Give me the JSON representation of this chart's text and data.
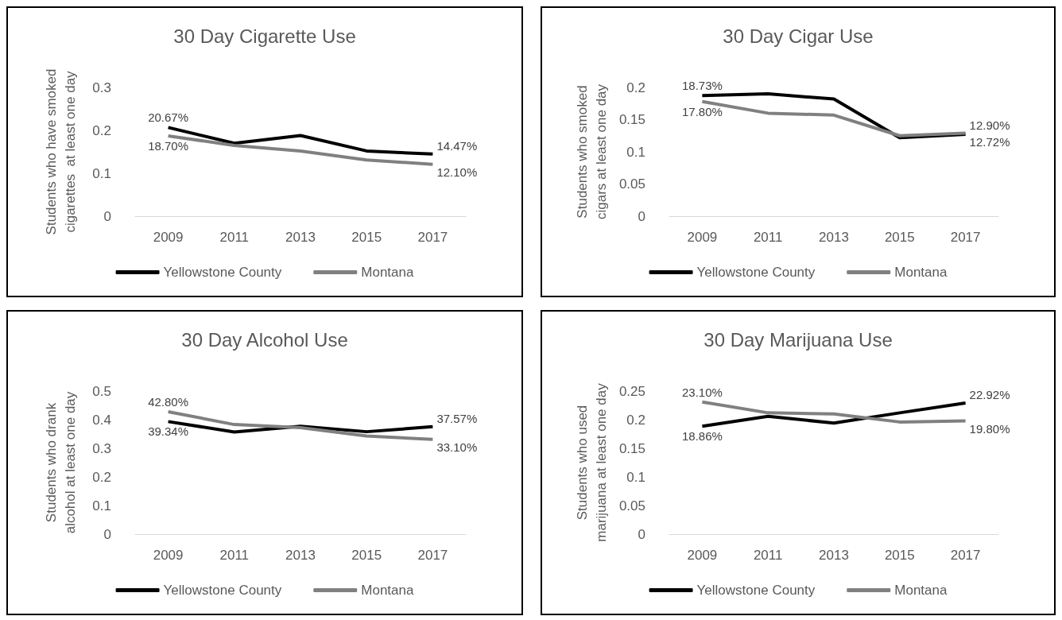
{
  "chart_data": [
    {
      "type": "line",
      "title": "30 Day Cigarette Use",
      "ylabel": "Students who have smoked cigarettes  at least one day",
      "categories": [
        "2009",
        "2011",
        "2013",
        "2015",
        "2017"
      ],
      "ylim": [
        0,
        0.3
      ],
      "yticks": [
        0,
        0.1,
        0.2,
        0.3
      ],
      "grid": false,
      "legend": "bottom",
      "series": [
        {
          "name": "Yellowstone County",
          "color": "#000000",
          "values": [
            0.2067,
            0.17,
            0.188,
            0.152,
            0.1447
          ],
          "value_labels": [
            "20.67%",
            null,
            null,
            null,
            "14.47%"
          ]
        },
        {
          "name": "Montana",
          "color": "#808080",
          "values": [
            0.187,
            0.165,
            0.152,
            0.131,
            0.121
          ],
          "value_labels": [
            "18.70%",
            null,
            null,
            null,
            "12.10%"
          ]
        }
      ]
    },
    {
      "type": "line",
      "title": "30 Day Cigar Use",
      "ylabel": "Students who smoked cigars at least one day",
      "categories": [
        "2009",
        "2011",
        "2013",
        "2015",
        "2017"
      ],
      "ylim": [
        0,
        0.2
      ],
      "yticks": [
        0,
        0.05,
        0.1,
        0.15,
        0.2
      ],
      "grid": false,
      "legend": "bottom",
      "series": [
        {
          "name": "Yellowstone County",
          "color": "#000000",
          "values": [
            0.1873,
            0.19,
            0.182,
            0.122,
            0.1272
          ],
          "value_labels": [
            "18.73%",
            null,
            null,
            null,
            "12.72%"
          ]
        },
        {
          "name": "Montana",
          "color": "#808080",
          "values": [
            0.178,
            0.16,
            0.157,
            0.125,
            0.129
          ],
          "value_labels": [
            "17.80%",
            null,
            null,
            null,
            "12.90%"
          ]
        }
      ]
    },
    {
      "type": "line",
      "title": "30 Day Alcohol Use",
      "ylabel": "Students who drank alcohol at least one day",
      "categories": [
        "2009",
        "2011",
        "2013",
        "2015",
        "2017"
      ],
      "ylim": [
        0,
        0.5
      ],
      "yticks": [
        0,
        0.1,
        0.2,
        0.3,
        0.4,
        0.5
      ],
      "grid": false,
      "legend": "bottom",
      "series": [
        {
          "name": "Yellowstone County",
          "color": "#000000",
          "values": [
            0.3934,
            0.357,
            0.377,
            0.358,
            0.3757
          ],
          "value_labels": [
            "39.34%",
            null,
            null,
            null,
            "37.57%"
          ]
        },
        {
          "name": "Montana",
          "color": "#808080",
          "values": [
            0.428,
            0.383,
            0.372,
            0.343,
            0.331
          ],
          "value_labels": [
            "42.80%",
            null,
            null,
            null,
            "33.10%"
          ]
        }
      ]
    },
    {
      "type": "line",
      "title": "30 Day Marijuana Use",
      "ylabel": "Students who used marijuana at least one day",
      "categories": [
        "2009",
        "2011",
        "2013",
        "2015",
        "2017"
      ],
      "ylim": [
        0,
        0.25
      ],
      "yticks": [
        0,
        0.05,
        0.1,
        0.15,
        0.2,
        0.25
      ],
      "grid": false,
      "legend": "bottom",
      "series": [
        {
          "name": "Yellowstone County",
          "color": "#000000",
          "values": [
            0.1886,
            0.206,
            0.194,
            0.212,
            0.2292
          ],
          "value_labels": [
            "18.86%",
            null,
            null,
            null,
            "22.92%"
          ]
        },
        {
          "name": "Montana",
          "color": "#808080",
          "values": [
            0.231,
            0.212,
            0.21,
            0.196,
            0.198
          ],
          "value_labels": [
            "23.10%",
            null,
            null,
            null,
            "19.80%"
          ]
        }
      ]
    }
  ]
}
